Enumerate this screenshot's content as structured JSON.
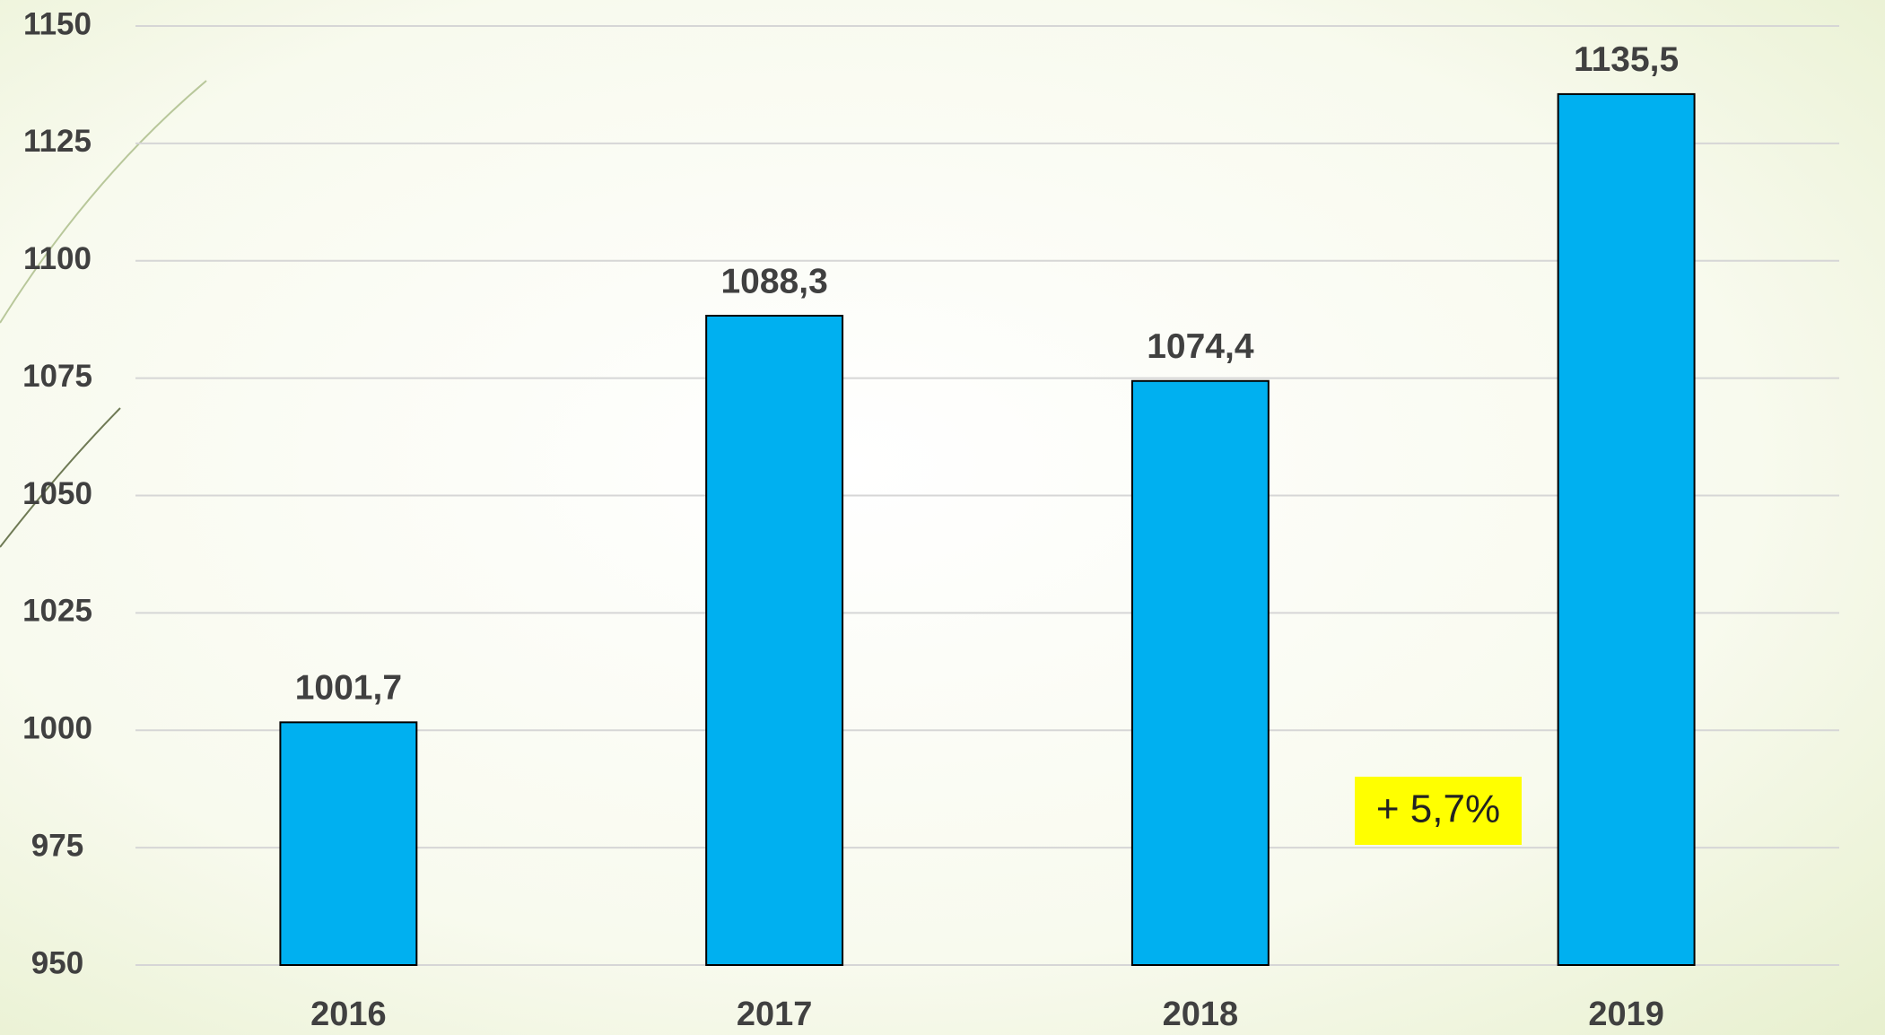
{
  "chart_data": {
    "type": "bar",
    "categories": [
      "2016",
      "2017",
      "2018",
      "2019"
    ],
    "values": [
      1001.7,
      1088.3,
      1074.4,
      1135.5
    ],
    "value_labels": [
      "1001,7",
      "1088,3",
      "1074,4",
      "1135,5"
    ],
    "color": "#00b0f0",
    "ylim": [
      950,
      1150
    ],
    "yticks": [
      950,
      975,
      1000,
      1025,
      1050,
      1075,
      1100,
      1125,
      1150
    ],
    "grid": true,
    "annotation": "+ 5,7%"
  }
}
